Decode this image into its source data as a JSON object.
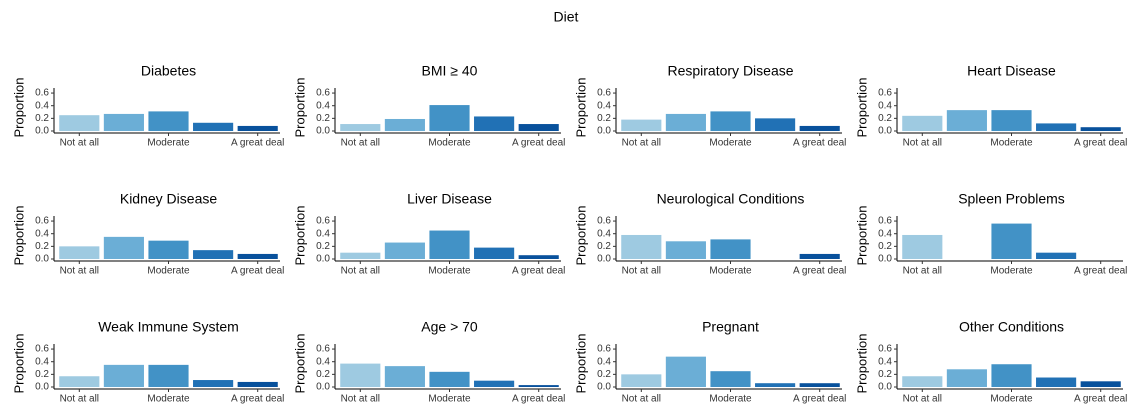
{
  "title": "Diet",
  "chart_data": [
    {
      "type": "bar",
      "title": "Diabetes",
      "ylabel": "Proportion",
      "categories": [
        "Not at all",
        null,
        "Moderate",
        null,
        "A great deal"
      ],
      "values": [
        0.25,
        0.27,
        0.31,
        0.13,
        0.08
      ],
      "colors": [
        "#9ecae1",
        "#6baed6",
        "#4292c6",
        "#2171b5",
        "#08519c"
      ],
      "ylim": [
        0,
        0.68
      ],
      "yticks": [
        {
          "value": 0,
          "label": "0.0"
        },
        0.2,
        0.4,
        0.6
      ]
    },
    {
      "type": "bar",
      "title": "BMI ≥ 40",
      "ylabel": "Proportion",
      "categories": [
        "Not at all",
        null,
        "Moderate",
        null,
        "A great deal"
      ],
      "values": [
        0.11,
        0.19,
        0.41,
        0.23,
        0.11
      ],
      "colors": [
        "#9ecae1",
        "#6baed6",
        "#4292c6",
        "#2171b5",
        "#08519c"
      ],
      "ylim": [
        0,
        0.68
      ],
      "yticks": [
        {
          "value": 0,
          "label": "0.0"
        },
        0.2,
        0.4,
        0.6
      ]
    },
    {
      "type": "bar",
      "title": "Respiratory Disease",
      "ylabel": "Proportion",
      "categories": [
        "Not at all",
        null,
        "Moderate",
        null,
        "A great deal"
      ],
      "values": [
        0.18,
        0.27,
        0.31,
        0.2,
        0.08
      ],
      "colors": [
        "#9ecae1",
        "#6baed6",
        "#4292c6",
        "#2171b5",
        "#08519c"
      ],
      "ylim": [
        0,
        0.68
      ],
      "yticks": [
        {
          "value": 0,
          "label": "0.0"
        },
        0.2,
        0.4,
        0.6
      ]
    },
    {
      "type": "bar",
      "title": "Heart Disease",
      "ylabel": "Proportion",
      "categories": [
        "Not at all",
        null,
        "Moderate",
        null,
        "A great deal"
      ],
      "values": [
        0.24,
        0.33,
        0.33,
        0.12,
        0.06
      ],
      "colors": [
        "#9ecae1",
        "#6baed6",
        "#4292c6",
        "#2171b5",
        "#08519c"
      ],
      "ylim": [
        0,
        0.68
      ],
      "yticks": [
        {
          "value": 0,
          "label": "0.0"
        },
        0.2,
        0.4,
        0.6
      ]
    },
    {
      "type": "bar",
      "title": "Kidney Disease",
      "ylabel": "Proportion",
      "categories": [
        "Not at all",
        null,
        "Moderate",
        null,
        "A great deal"
      ],
      "values": [
        0.2,
        0.35,
        0.29,
        0.14,
        0.08
      ],
      "colors": [
        "#9ecae1",
        "#6baed6",
        "#4292c6",
        "#2171b5",
        "#08519c"
      ],
      "ylim": [
        0,
        0.68
      ],
      "yticks": [
        {
          "value": 0,
          "label": "0.0"
        },
        0.2,
        0.4,
        0.6
      ]
    },
    {
      "type": "bar",
      "title": "Liver Disease",
      "ylabel": "Proportion",
      "categories": [
        "Not at all",
        null,
        "Moderate",
        null,
        "A great deal"
      ],
      "values": [
        0.1,
        0.26,
        0.45,
        0.18,
        0.06
      ],
      "colors": [
        "#9ecae1",
        "#6baed6",
        "#4292c6",
        "#2171b5",
        "#08519c"
      ],
      "ylim": [
        0,
        0.68
      ],
      "yticks": [
        {
          "value": 0,
          "label": "0.0"
        },
        0.2,
        0.4,
        0.6
      ]
    },
    {
      "type": "bar",
      "title": "Neurological Conditions",
      "ylabel": "Proportion",
      "categories": [
        "Not at all",
        null,
        "Moderate",
        null,
        "A great deal"
      ],
      "values": [
        0.38,
        0.28,
        0.31,
        0,
        0.08
      ],
      "colors": [
        "#9ecae1",
        "#6baed6",
        "#4292c6",
        "#2171b5",
        "#08519c"
      ],
      "ylim": [
        0,
        0.68
      ],
      "yticks": [
        {
          "value": 0,
          "label": "0.0"
        },
        0.2,
        0.4,
        0.6
      ]
    },
    {
      "type": "bar",
      "title": "Spleen Problems",
      "ylabel": "Proportion",
      "categories": [
        "Not at all",
        null,
        "Moderate",
        null,
        "A great deal"
      ],
      "values": [
        0.38,
        0,
        0.56,
        0.1,
        0
      ],
      "colors": [
        "#9ecae1",
        "#6baed6",
        "#4292c6",
        "#2171b5",
        "#08519c"
      ],
      "ylim": [
        0,
        0.68
      ],
      "yticks": [
        {
          "value": 0,
          "label": "0.0"
        },
        0.2,
        0.4,
        0.6
      ]
    },
    {
      "type": "bar",
      "title": "Weak Immune System",
      "ylabel": "Proportion",
      "categories": [
        "Not at all",
        null,
        "Moderate",
        null,
        "A great deal"
      ],
      "values": [
        0.17,
        0.35,
        0.35,
        0.11,
        0.08
      ],
      "colors": [
        "#9ecae1",
        "#6baed6",
        "#4292c6",
        "#2171b5",
        "#08519c"
      ],
      "ylim": [
        0,
        0.68
      ],
      "yticks": [
        {
          "value": 0,
          "label": "0.0"
        },
        0.2,
        0.4,
        0.6
      ]
    },
    {
      "type": "bar",
      "title": "Age > 70",
      "ylabel": "Proportion",
      "categories": [
        "Not at all",
        null,
        "Moderate",
        null,
        "A great deal"
      ],
      "values": [
        0.37,
        0.33,
        0.24,
        0.1,
        0.03
      ],
      "colors": [
        "#9ecae1",
        "#6baed6",
        "#4292c6",
        "#2171b5",
        "#08519c"
      ],
      "ylim": [
        0,
        0.68
      ],
      "yticks": [
        {
          "value": 0,
          "label": "0.0"
        },
        0.2,
        0.4,
        0.6
      ]
    },
    {
      "type": "bar",
      "title": "Pregnant",
      "ylabel": "Proportion",
      "categories": [
        "Not at all",
        null,
        "Moderate",
        null,
        "A great deal"
      ],
      "values": [
        0.2,
        0.48,
        0.25,
        0.06,
        0.06
      ],
      "colors": [
        "#9ecae1",
        "#6baed6",
        "#4292c6",
        "#2171b5",
        "#08519c"
      ],
      "ylim": [
        0,
        0.68
      ],
      "yticks": [
        {
          "value": 0,
          "label": "0.0"
        },
        0.2,
        0.4,
        0.6
      ]
    },
    {
      "type": "bar",
      "title": "Other Conditions",
      "ylabel": "Proportion",
      "categories": [
        "Not at all",
        null,
        "Moderate",
        null,
        "A great deal"
      ],
      "values": [
        0.17,
        0.28,
        0.36,
        0.15,
        0.09
      ],
      "colors": [
        "#9ecae1",
        "#6baed6",
        "#4292c6",
        "#2171b5",
        "#08519c"
      ],
      "ylim": [
        0,
        0.68
      ],
      "yticks": [
        {
          "value": 0,
          "label": "0.0"
        },
        0.2,
        0.4,
        0.6
      ]
    }
  ]
}
